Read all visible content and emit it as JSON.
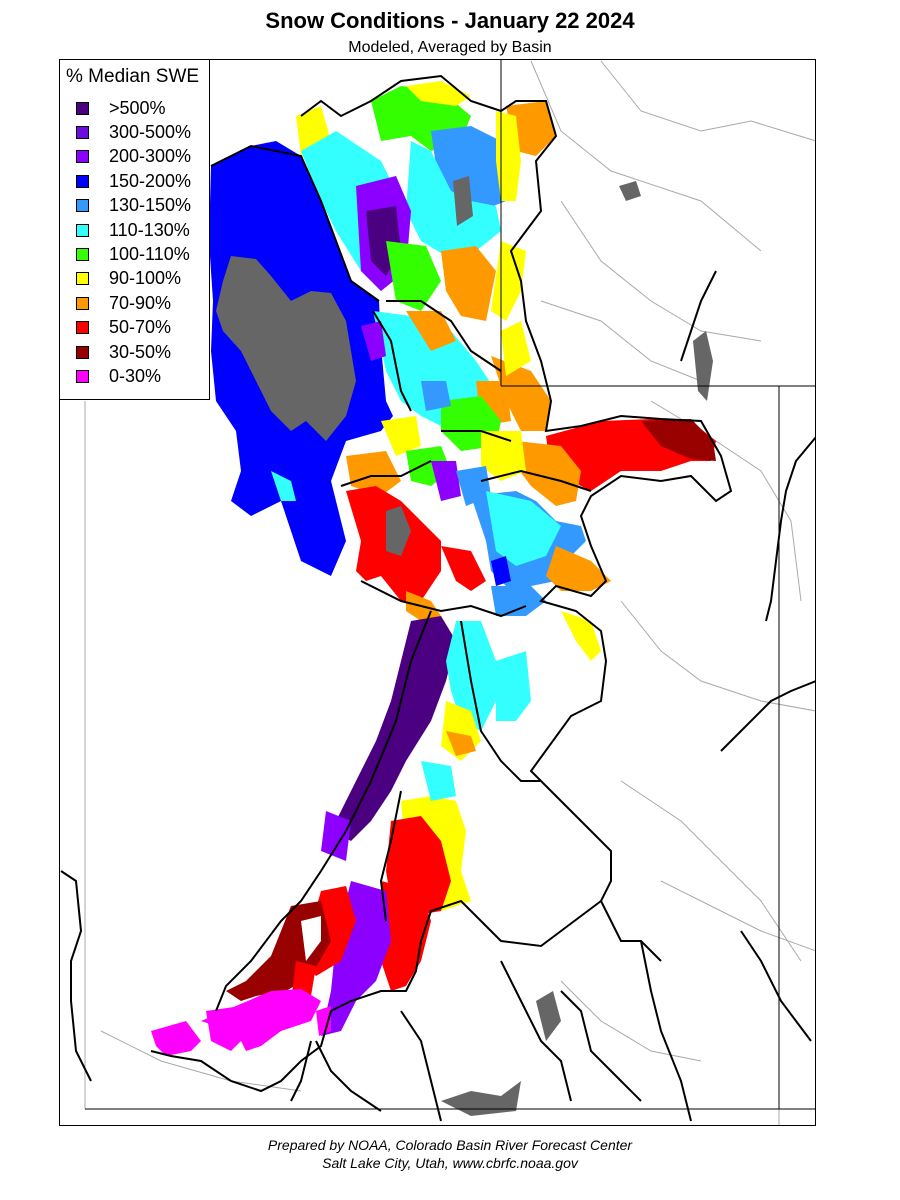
{
  "header": {
    "title": "Snow Conditions - January 22 2024",
    "subtitle": "Modeled, Averaged by Basin"
  },
  "legend": {
    "title": "% Median SWE",
    "items": [
      {
        "label": ">500%",
        "color": "#4b0082"
      },
      {
        "label": "300-500%",
        "color": "#6a0dde"
      },
      {
        "label": "200-300%",
        "color": "#8b00ff"
      },
      {
        "label": "150-200%",
        "color": "#0000ff"
      },
      {
        "label": "130-150%",
        "color": "#3399ff"
      },
      {
        "label": "110-130%",
        "color": "#33ffff"
      },
      {
        "label": "100-110%",
        "color": "#33ff00"
      },
      {
        "label": "90-100%",
        "color": "#ffff00"
      },
      {
        "label": "70-90%",
        "color": "#ff9900"
      },
      {
        "label": "50-70%",
        "color": "#ff0000"
      },
      {
        "label": "30-50%",
        "color": "#990000"
      },
      {
        "label": "0-30%",
        "color": "#ff00ff"
      }
    ]
  },
  "map": {
    "lake_color": "#666666",
    "border_color": "#000000",
    "river_color": "#a9a9a9"
  },
  "footer": {
    "line1": "Prepared by NOAA, Colorado Basin River Forecast Center",
    "line2": "Salt Lake City, Utah, www.cbrfc.noaa.gov"
  }
}
